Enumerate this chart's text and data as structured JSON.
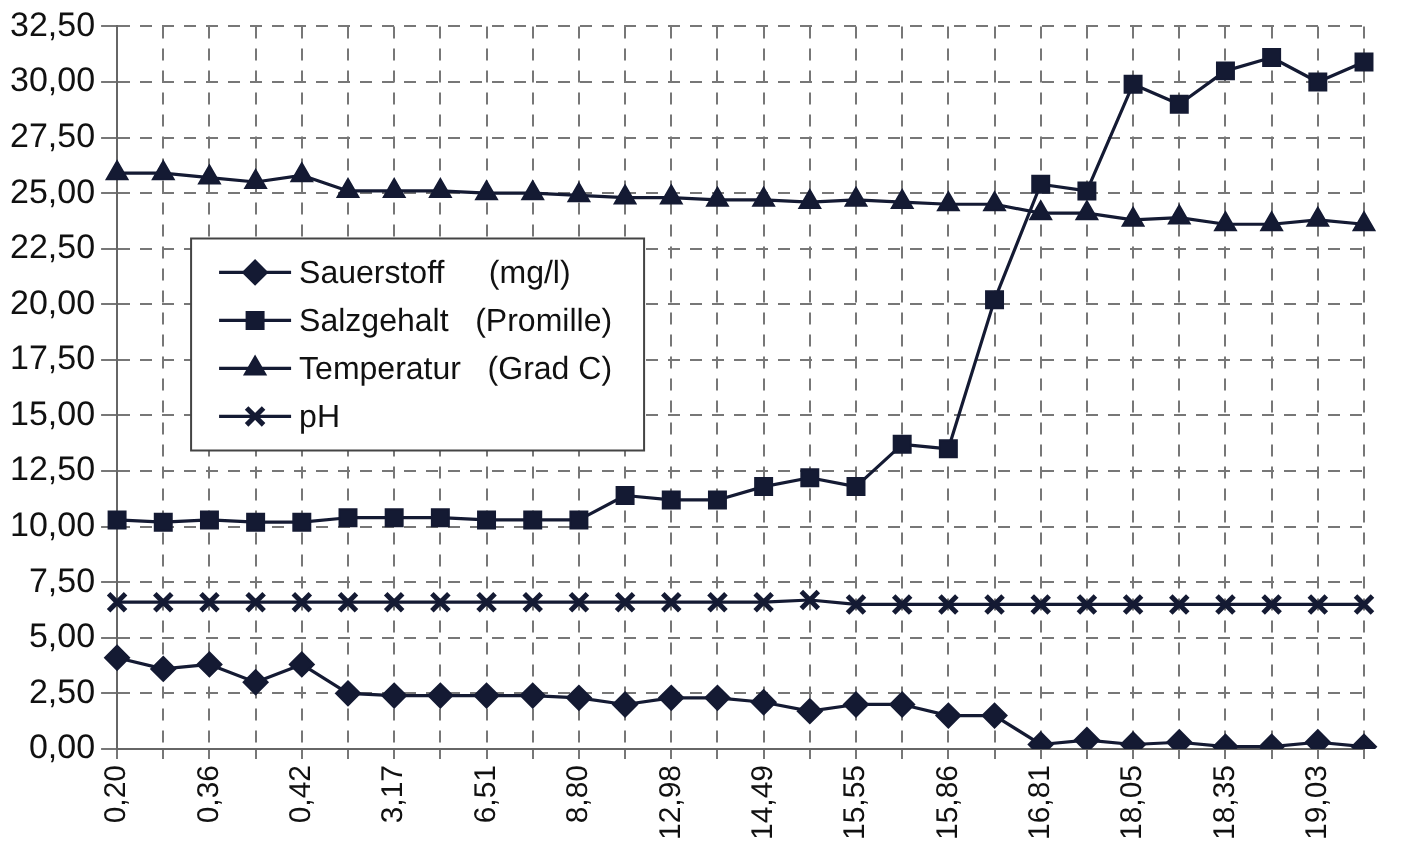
{
  "chart_data": {
    "type": "line",
    "categories": [
      "0,20",
      null,
      "0,36",
      null,
      "0,42",
      null,
      "3,17",
      null,
      "6,51",
      null,
      "8,80",
      null,
      "12,98",
      null,
      "14,49",
      null,
      "15,55",
      null,
      "15,86",
      null,
      "16,81",
      null,
      "18,05",
      null,
      "18,35",
      null,
      "19,03",
      null
    ],
    "series": [
      {
        "name": "Sauerstoff     (mg/l)",
        "color": "#141a33",
        "marker": "diamond",
        "values": [
          4.1,
          3.6,
          3.8,
          3.0,
          3.8,
          2.5,
          2.4,
          2.4,
          2.4,
          2.4,
          2.3,
          2.0,
          2.3,
          2.3,
          2.1,
          1.7,
          2.0,
          2.0,
          1.5,
          1.5,
          0.2,
          0.4,
          0.2,
          0.3,
          0.1,
          0.1,
          0.3,
          0.1
        ]
      },
      {
        "name": "Salzgehalt   (Promille)",
        "color": "#141a33",
        "marker": "square",
        "values": [
          10.3,
          10.2,
          10.3,
          10.2,
          10.2,
          10.4,
          10.4,
          10.4,
          10.3,
          10.3,
          10.3,
          11.4,
          11.2,
          11.2,
          11.8,
          12.2,
          11.8,
          13.7,
          13.5,
          20.2,
          25.4,
          25.1,
          29.9,
          29.0,
          30.5,
          31.1,
          30.0,
          30.9
        ]
      },
      {
        "name": "Temperatur   (Grad C)",
        "color": "#141a33",
        "marker": "triangle",
        "values": [
          25.9,
          25.9,
          25.7,
          25.5,
          25.8,
          25.1,
          25.1,
          25.1,
          25.0,
          25.0,
          24.9,
          24.8,
          24.8,
          24.7,
          24.7,
          24.6,
          24.7,
          24.6,
          24.5,
          24.5,
          24.1,
          24.1,
          23.8,
          23.9,
          23.6,
          23.6,
          23.8,
          23.6
        ]
      },
      {
        "name": "pH",
        "color": "#141a33",
        "marker": "cross",
        "values": [
          6.6,
          6.6,
          6.6,
          6.6,
          6.6,
          6.6,
          6.6,
          6.6,
          6.6,
          6.6,
          6.6,
          6.6,
          6.6,
          6.6,
          6.6,
          6.7,
          6.5,
          6.5,
          6.5,
          6.5,
          6.5,
          6.5,
          6.5,
          6.5,
          6.5,
          6.5,
          6.5,
          6.5
        ]
      }
    ],
    "ylim": [
      0,
      32.5
    ],
    "yticks": [
      {
        "value": 0,
        "label": "0,00"
      },
      {
        "value": 2.5,
        "label": "2,50"
      },
      {
        "value": 5,
        "label": "5,00"
      },
      {
        "value": 7.5,
        "label": "7,50"
      },
      {
        "value": 10,
        "label": "10,00"
      },
      {
        "value": 12.5,
        "label": "12,50"
      },
      {
        "value": 15,
        "label": "15,00"
      },
      {
        "value": 17.5,
        "label": "17,50"
      },
      {
        "value": 20,
        "label": "20,00"
      },
      {
        "value": 22.5,
        "label": "22,50"
      },
      {
        "value": 25,
        "label": "25,00"
      },
      {
        "value": 27.5,
        "label": "27,50"
      },
      {
        "value": 30,
        "label": "30,00"
      },
      {
        "value": 32.5,
        "label": "32,50"
      }
    ],
    "grid": true,
    "legend": "left",
    "line_style": "solid"
  }
}
